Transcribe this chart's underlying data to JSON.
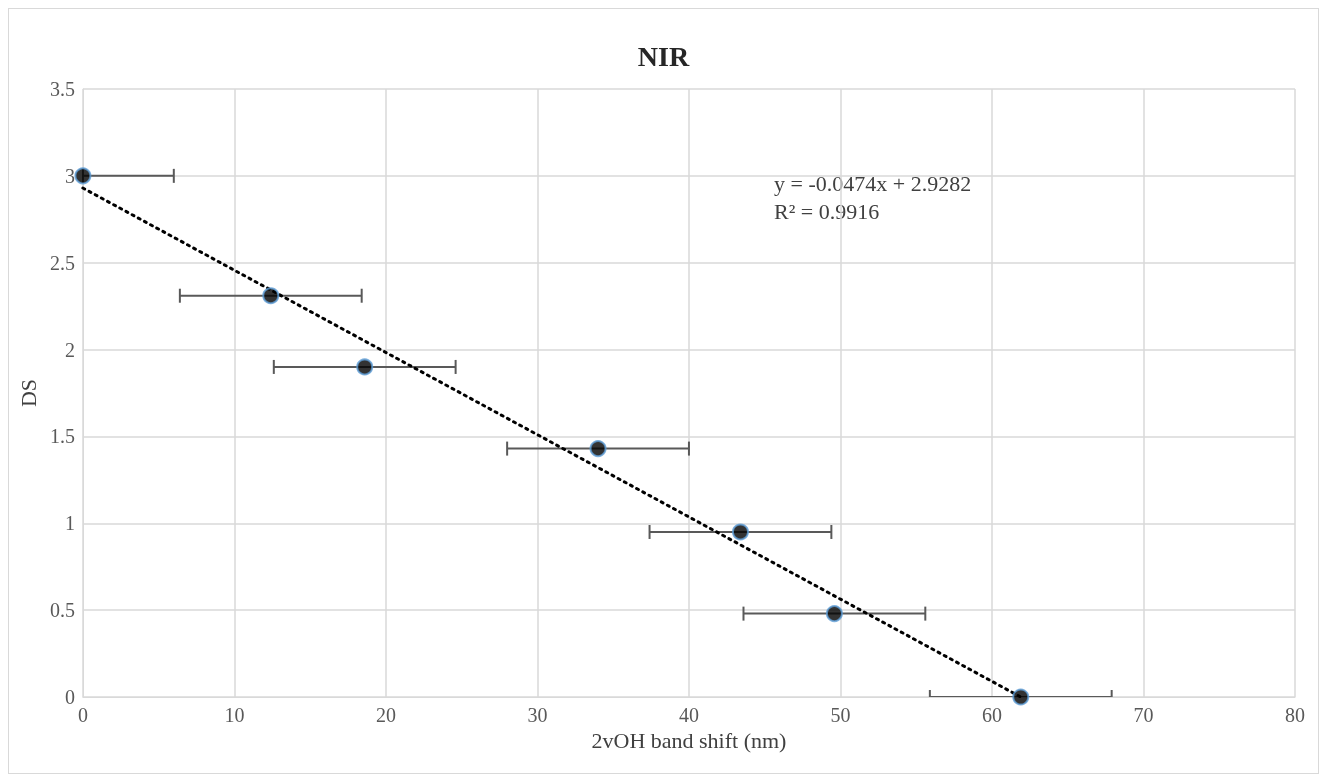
{
  "chart_data": {
    "type": "scatter",
    "title": "NIR",
    "xlabel": "2vOH band shift (nm)",
    "ylabel": "DS",
    "annotations": [
      "y = -0.0474x + 2.9282",
      "R² = 0.9916"
    ],
    "series": [
      {
        "color": "#000000",
        "x": [
          0,
          12.4,
          18.6,
          34,
          43.4,
          49.6,
          61.9
        ],
        "values": [
          3,
          2.31,
          1.9,
          1.43,
          0.95,
          0.48,
          0
        ],
        "xerrors": [
          [
            0,
            6
          ],
          6,
          6,
          6,
          6,
          6,
          6
        ],
        "marker": "circle"
      },
      {
        "type": "line",
        "color": "#000000",
        "x": [
          0,
          61.9
        ],
        "values": [
          2.93,
          0
        ],
        "line_style": "dotted",
        "marker": "none"
      }
    ],
    "xlim": [
      0,
      80
    ],
    "xticks": [
      0,
      10,
      20,
      30,
      40,
      50,
      60,
      70,
      80
    ],
    "ylim": [
      0,
      3.5
    ],
    "yticks": [
      0,
      0.5,
      1,
      1.5,
      2,
      2.5,
      3,
      3.5
    ],
    "grid": true
  }
}
